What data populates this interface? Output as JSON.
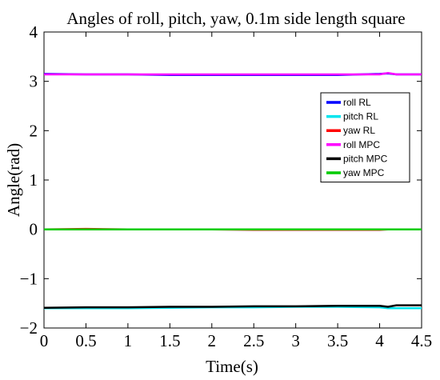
{
  "chart_data": {
    "type": "line",
    "title": "Angles of roll, pitch, yaw, 0.1m side length square",
    "xlabel": "Time(s)",
    "ylabel": "Angle(rad)",
    "xlim": [
      0,
      4.5
    ],
    "ylim": [
      -2,
      4
    ],
    "xticks": [
      0,
      0.5,
      1,
      1.5,
      2,
      2.5,
      3,
      3.5,
      4,
      4.5
    ],
    "xtick_labels": [
      "0",
      "0.5",
      "1",
      "1.5",
      "2",
      "2.5",
      "3",
      "3.5",
      "4",
      "4.5"
    ],
    "yticks": [
      -2,
      -1,
      0,
      1,
      2,
      3,
      4
    ],
    "ytick_labels": [
      "−2",
      "−1",
      "0",
      "1",
      "2",
      "3",
      "4"
    ],
    "grid": false,
    "legend_position": "right",
    "x": [
      0,
      0.5,
      1,
      1.5,
      2,
      2.5,
      3,
      3.5,
      4,
      4.1,
      4.2,
      4.5
    ],
    "series": [
      {
        "name": "roll RL",
        "color": "#0000ff",
        "values": [
          3.15,
          3.14,
          3.14,
          3.13,
          3.13,
          3.13,
          3.13,
          3.13,
          3.15,
          3.16,
          3.14,
          3.14
        ]
      },
      {
        "name": "pitch RL",
        "color": "#00e5ee",
        "values": [
          -1.6,
          -1.6,
          -1.6,
          -1.59,
          -1.58,
          -1.58,
          -1.57,
          -1.57,
          -1.58,
          -1.6,
          -1.6,
          -1.6
        ]
      },
      {
        "name": "yaw RL",
        "color": "#ff0000",
        "values": [
          0.0,
          0.01,
          0.0,
          0.0,
          0.0,
          -0.01,
          -0.01,
          -0.01,
          -0.01,
          0.0,
          0.0,
          0.0
        ]
      },
      {
        "name": "roll MPC",
        "color": "#ff00ff",
        "values": [
          3.14,
          3.14,
          3.14,
          3.14,
          3.14,
          3.14,
          3.14,
          3.14,
          3.14,
          3.17,
          3.14,
          3.14
        ]
      },
      {
        "name": "pitch MPC",
        "color": "#000000",
        "values": [
          -1.59,
          -1.58,
          -1.58,
          -1.57,
          -1.57,
          -1.56,
          -1.56,
          -1.55,
          -1.55,
          -1.57,
          -1.54,
          -1.54
        ]
      },
      {
        "name": "yaw MPC",
        "color": "#00cc00",
        "values": [
          0.0,
          0.0,
          0.0,
          0.0,
          0.0,
          0.0,
          0.0,
          0.0,
          0.0,
          0.0,
          0.0,
          0.0
        ]
      }
    ]
  }
}
